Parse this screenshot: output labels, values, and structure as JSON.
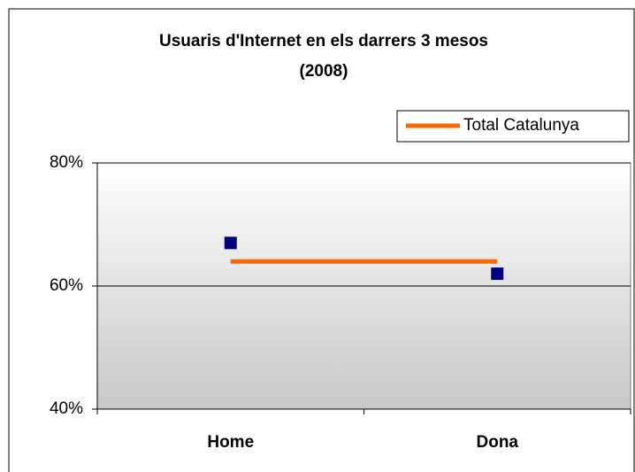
{
  "chart_data": {
    "type": "line",
    "title": [
      "Usuaris d'Internet en els darrers 3 mesos",
      "(2008)"
    ],
    "categories": [
      "Home",
      "Dona"
    ],
    "series": [
      {
        "color": "#000080",
        "values": [
          67,
          62
        ],
        "marker": "square"
      },
      {
        "name": "Total Catalunya",
        "color": "#ff6600",
        "values": [
          64,
          64
        ]
      }
    ],
    "ylim": [
      40,
      80
    ],
    "yticks": [
      {
        "value": 40,
        "label": "40%"
      },
      {
        "value": 60,
        "label": "60%"
      },
      {
        "value": 80,
        "label": "80%"
      }
    ],
    "grid": true,
    "legend": "top-right"
  }
}
